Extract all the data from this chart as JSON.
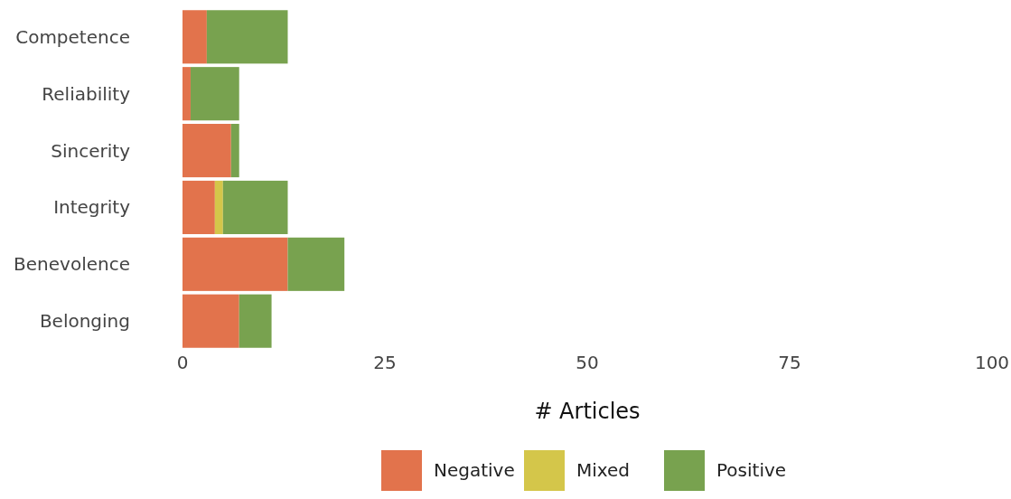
{
  "chart_data": {
    "type": "bar",
    "orientation": "horizontal",
    "stacked": true,
    "xlabel": "# Articles",
    "categories": [
      "Competence",
      "Reliability",
      "Sincerity",
      "Integrity",
      "Benevolence",
      "Belonging"
    ],
    "series": [
      {
        "name": "Negative",
        "color": "#e2734c",
        "values": [
          3,
          1,
          6,
          4,
          13,
          7
        ]
      },
      {
        "name": "Mixed",
        "color": "#d4c64a",
        "values": [
          0,
          0,
          0,
          1,
          0,
          0
        ]
      },
      {
        "name": "Positive",
        "color": "#78a24f",
        "values": [
          10,
          6,
          1,
          8,
          7,
          4
        ]
      }
    ],
    "xlim": [
      0,
      100
    ],
    "xticks": [
      0,
      25,
      50,
      75,
      100
    ],
    "grid": false,
    "legend": "bottom"
  }
}
